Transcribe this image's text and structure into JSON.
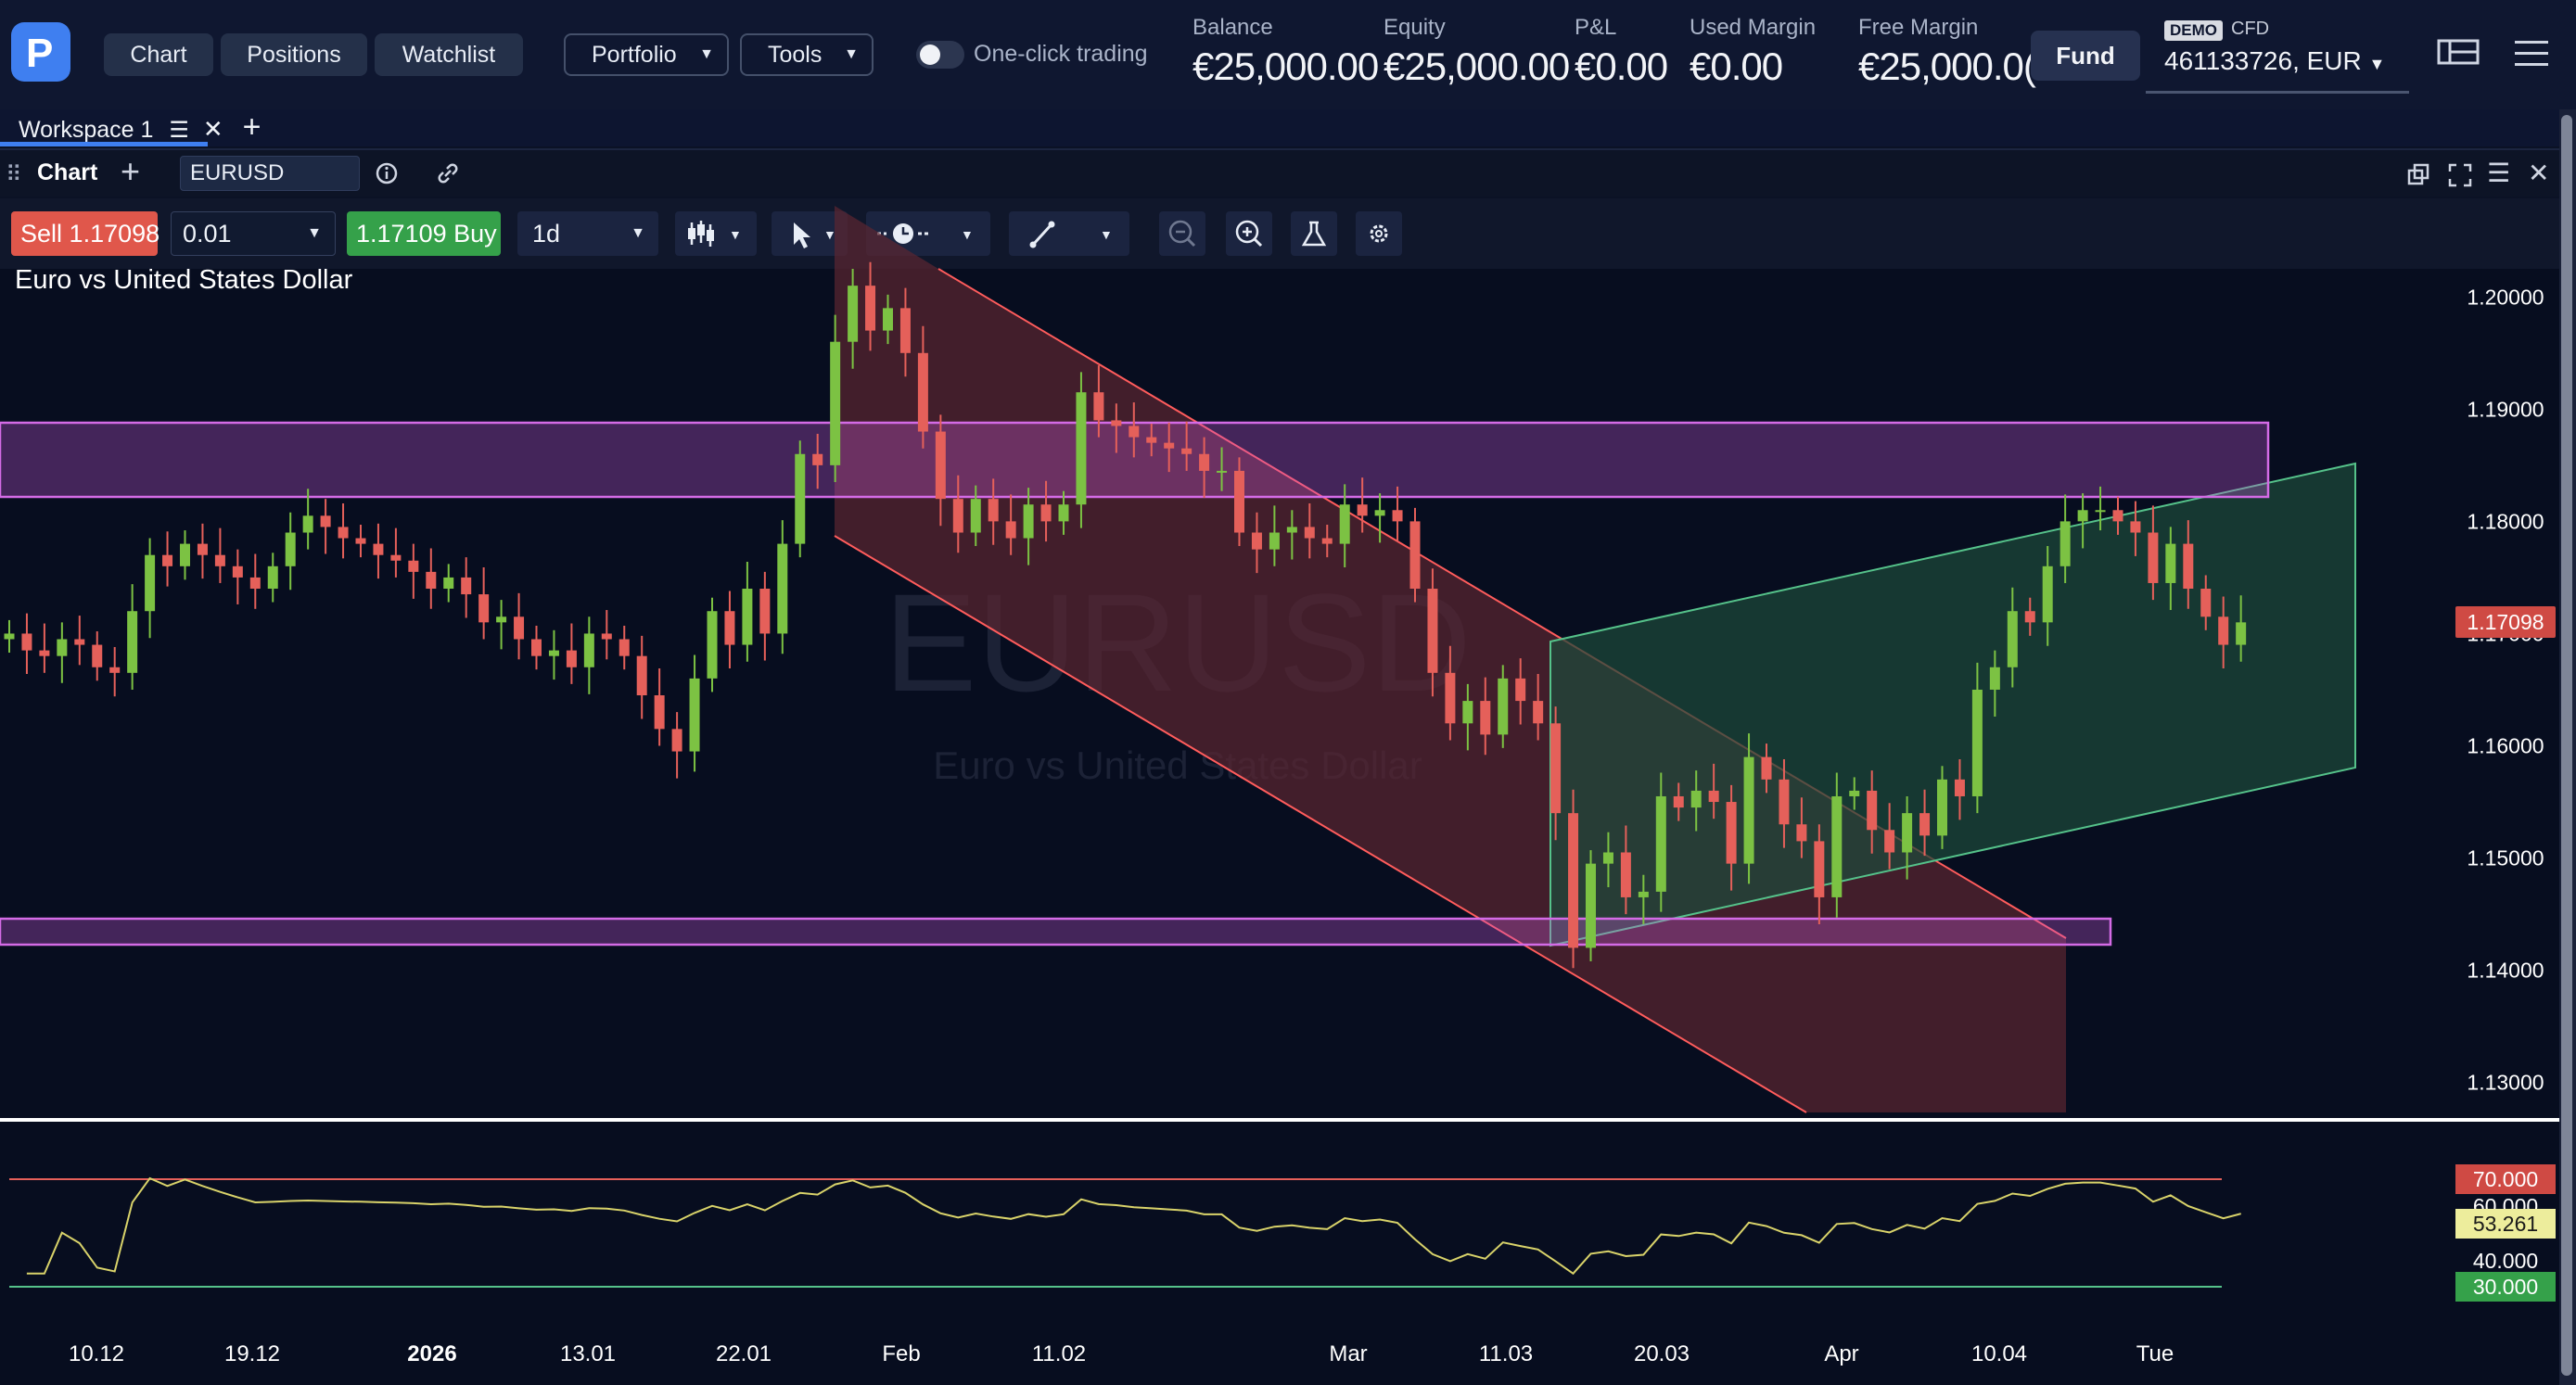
{
  "nav": {
    "chart": "Chart",
    "positions": "Positions",
    "watchlist": "Watchlist",
    "portfolio": "Portfolio",
    "tools": "Tools"
  },
  "one_click": "One-click trading",
  "account": {
    "balance_label": "Balance",
    "balance": "€25,000.00",
    "equity_label": "Equity",
    "equity": "€25,000.00",
    "pnl_label": "P&L",
    "pnl": "€0.00",
    "used_margin_label": "Used Margin",
    "used_margin": "€0.00",
    "free_margin_label": "Free Margin",
    "free_margin": "€25,000.0(",
    "fund": "Fund",
    "demo": "DEMO",
    "cfd": "CFD",
    "id": "461133726, EUR"
  },
  "workspace": {
    "tab": "Workspace 1"
  },
  "panel": {
    "title": "Chart",
    "symbol": "EURUSD"
  },
  "toolbar": {
    "sell_label": "Sell",
    "sell_price": "1.17098",
    "quantity": "0.01",
    "buy_price": "1.17109",
    "buy_label": "Buy",
    "timeframe": "1d"
  },
  "colors": {
    "bg": "#070d1f",
    "up": "#7cc243",
    "down": "#e5605a",
    "resistance": "#c659d8",
    "down_channel": "#5a2530",
    "up_channel": "#1d4a3a",
    "rsi": "#d9d36a"
  },
  "chart_data": {
    "type": "candlestick",
    "title": "Euro vs United States Dollar",
    "watermark": "EURUSD",
    "watermark_sub": "Euro vs United States Dollar",
    "ylim": [
      1.127,
      1.2025
    ],
    "y_ticks": [
      "1.20000",
      "1.19000",
      "1.18000",
      "1.17000",
      "1.16000",
      "1.15000",
      "1.14000",
      "1.13000"
    ],
    "last_price": "1.17098",
    "x_ticks": [
      "10.12",
      "19.12",
      "2026",
      "13.01",
      "22.01",
      "Feb",
      "11.02",
      "Mar",
      "11.03",
      "20.03",
      "Apr",
      "10.04",
      "Tue"
    ],
    "closes": [
      1.17,
      1.1685,
      1.168,
      1.1695,
      1.169,
      1.167,
      1.1665,
      1.172,
      1.177,
      1.176,
      1.178,
      1.177,
      1.176,
      1.175,
      1.174,
      1.176,
      1.179,
      1.1805,
      1.1795,
      1.1785,
      1.178,
      1.177,
      1.1765,
      1.1755,
      1.174,
      1.175,
      1.1735,
      1.171,
      1.1715,
      1.1695,
      1.168,
      1.1685,
      1.167,
      1.17,
      1.1695,
      1.168,
      1.1645,
      1.1615,
      1.1595,
      1.166,
      1.172,
      1.169,
      1.174,
      1.17,
      1.178,
      1.186,
      1.185,
      1.196,
      1.201,
      1.197,
      1.199,
      1.195,
      1.188,
      1.182,
      1.179,
      1.182,
      1.18,
      1.1785,
      1.1815,
      1.18,
      1.1815,
      1.1915,
      1.189,
      1.1885,
      1.1875,
      1.187,
      1.1865,
      1.186,
      1.1845,
      1.1845,
      1.179,
      1.1775,
      1.179,
      1.1795,
      1.1785,
      1.178,
      1.1815,
      1.1805,
      1.181,
      1.18,
      1.174,
      1.1665,
      1.162,
      1.164,
      1.161,
      1.166,
      1.164,
      1.162,
      1.154,
      1.142,
      1.1495,
      1.1505,
      1.1465,
      1.147,
      1.1555,
      1.1545,
      1.156,
      1.155,
      1.1495,
      1.159,
      1.157,
      1.153,
      1.1515,
      1.1465,
      1.1555,
      1.156,
      1.1525,
      1.1505,
      1.154,
      1.152,
      1.157,
      1.1555,
      1.165,
      1.167,
      1.172,
      1.171,
      1.176,
      1.18,
      1.181,
      1.181,
      1.18,
      1.179,
      1.1745,
      1.178,
      1.174,
      1.1715,
      1.169,
      1.171
    ],
    "rsi": {
      "levels": [
        "70.000",
        "60.000",
        "40.000",
        "30.000"
      ],
      "value": "53.261"
    }
  }
}
